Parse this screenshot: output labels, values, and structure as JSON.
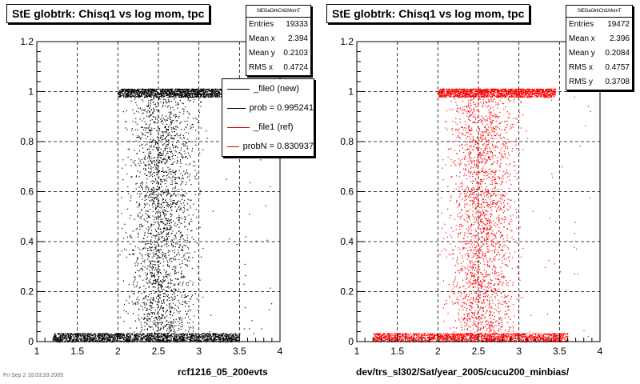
{
  "chart_data": [
    {
      "type": "scatter",
      "title": "StE globtrk: Chisq1 vs log mom, tpc",
      "xlabel": "rcf1216_05_200evts",
      "ylabel": "",
      "xlim": [
        1,
        4
      ],
      "ylim": [
        0,
        1.2
      ],
      "xticks": [
        "1",
        "1.5",
        "2",
        "2.5",
        "3",
        "3.5",
        "4"
      ],
      "yticks": [
        "0",
        "0.2",
        "0.4",
        "0.6",
        "0.8",
        "1",
        "1.2"
      ],
      "grid": true,
      "marker_color": "#000000",
      "bands": [
        {
          "y": 1.0,
          "x_range": [
            2.0,
            3.45
          ]
        },
        {
          "y": 0.02,
          "x_range": [
            1.2,
            3.5
          ]
        }
      ],
      "stats": {
        "header": "StEGaGlrkChi1MomT",
        "rows": [
          {
            "label": "Entries",
            "value": "19333"
          },
          {
            "label": "Mean x",
            "value": "2.394"
          },
          {
            "label": "Mean y",
            "value": "0.2103"
          },
          {
            "label": "RMS x",
            "value": "0.4724"
          }
        ]
      },
      "legend": [
        {
          "text": "_file0 (new)",
          "color": "#000000"
        },
        {
          "text": "prob = 0.995241",
          "color": "#000000"
        },
        {
          "text": "_file1 (ref)",
          "color": "#cc0000"
        },
        {
          "text": "probN = 0.830937",
          "color": "#cc0000"
        }
      ]
    },
    {
      "type": "scatter",
      "title": "StE globtrk: Chisq1 vs log mom, tpc",
      "xlabel": "dev/trs_sl302/Sat/year_2005/cucu200_minbias/",
      "ylabel": "",
      "xlim": [
        1,
        4
      ],
      "ylim": [
        0,
        1.2
      ],
      "xticks": [
        "1",
        "1.5",
        "2",
        "2.5",
        "3",
        "3.5",
        "4"
      ],
      "yticks": [
        "0",
        "0.2",
        "0.4",
        "0.6",
        "0.8",
        "1",
        "1.2"
      ],
      "grid": true,
      "marker_color": "#ff0000",
      "bands": [
        {
          "y": 1.0,
          "x_range": [
            2.0,
            3.45
          ]
        },
        {
          "y": 0.02,
          "x_range": [
            1.2,
            3.6
          ]
        }
      ],
      "stats": {
        "header": "StEGaGlrkChi1MomT",
        "rows": [
          {
            "label": "Entries",
            "value": "19472"
          },
          {
            "label": "Mean x",
            "value": "2.396"
          },
          {
            "label": "Mean y",
            "value": "0.2084"
          },
          {
            "label": "RMS x",
            "value": "0.4757"
          },
          {
            "label": "RMS y",
            "value": "0.3708"
          }
        ]
      }
    }
  ],
  "footer": "Fri Sep 2 16:03:33 2005"
}
